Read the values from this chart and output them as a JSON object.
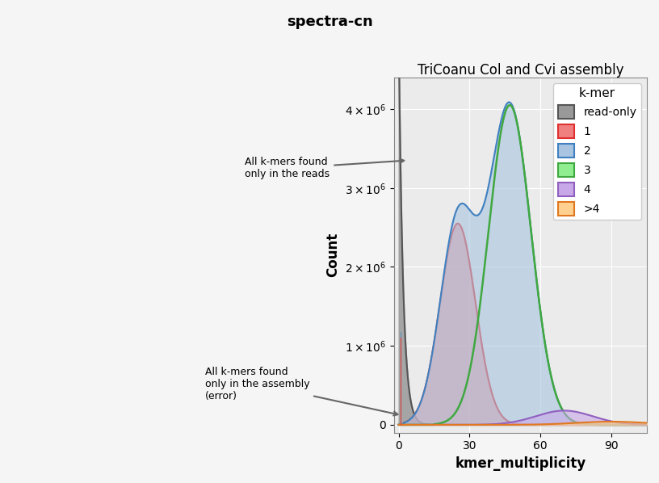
{
  "title": "spectra-cn",
  "subtitle": "TriCoanu Col and Cvi assembly",
  "xlabel": "kmer_multiplicity",
  "ylabel": "Count",
  "xlim": [
    -2,
    105
  ],
  "ylim": [
    -100000,
    4400000
  ],
  "bg_color": "#ebebeb",
  "grid_color": "#ffffff",
  "legend_title": "k-mer",
  "legend_entries": [
    "read-only",
    "1",
    "2",
    "3",
    "4",
    ">4"
  ],
  "fill_colors": [
    "#999999",
    "#f08080",
    "#a8c4e0",
    "#90ee90",
    "#c8a8e8",
    "#ffd090"
  ],
  "edge_colors": [
    "#555555",
    "#e03030",
    "#4080c0",
    "#40a840",
    "#9060c0",
    "#e07820"
  ],
  "annotation_reads": "All k-mers found\nonly in the reads",
  "annotation_assembly": "All k-mers found\nonly in the assembly\n(error)",
  "bar_red_height": 1100000,
  "bar_blue_height": 80000,
  "bar_blue_bottom": 1100000,
  "bar_x": 1,
  "bar_width": 0.45
}
